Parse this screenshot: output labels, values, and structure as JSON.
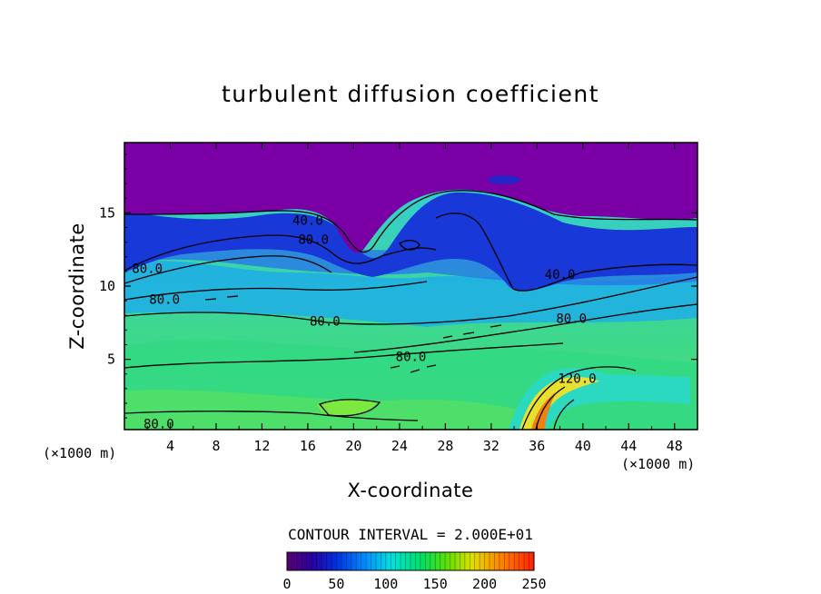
{
  "chart_data": {
    "type": "heatmap",
    "title": "turbulent diffusion coefficient",
    "xlabel": "X-coordinate",
    "ylabel": "Z-coordinate",
    "x_unit": "(×1000 m)",
    "y_unit": "(×1000 m)",
    "xlim": [
      0,
      50
    ],
    "ylim": [
      0.2,
      19.8
    ],
    "x_ticks": [
      4,
      8,
      12,
      16,
      20,
      24,
      28,
      32,
      36,
      40,
      44,
      48
    ],
    "y_ticks": [
      5,
      10,
      15
    ],
    "contour_interval_text": "CONTOUR INTERVAL = 2.000E+01",
    "colorbar": {
      "range": [
        0,
        250
      ],
      "ticks": [
        0,
        50,
        100,
        150,
        200,
        250
      ]
    },
    "contour_labels": [
      {
        "text": "40.0",
        "x": 16,
        "z": 14.5
      },
      {
        "text": "80.0",
        "x": 16.5,
        "z": 13.2
      },
      {
        "text": "80.0",
        "x": 2,
        "z": 11.2
      },
      {
        "text": "80.0",
        "x": 3.5,
        "z": 9.1
      },
      {
        "text": "40.0",
        "x": 38,
        "z": 10.8
      },
      {
        "text": "80.0",
        "x": 39,
        "z": 7.8
      },
      {
        "text": "80.0",
        "x": 17.5,
        "z": 7.6
      },
      {
        "text": "80.0",
        "x": 25,
        "z": 5.2
      },
      {
        "text": "120.0",
        "x": 39.5,
        "z": 3.7
      },
      {
        "text": "80.0",
        "x": 3,
        "z": 0.6
      }
    ]
  }
}
